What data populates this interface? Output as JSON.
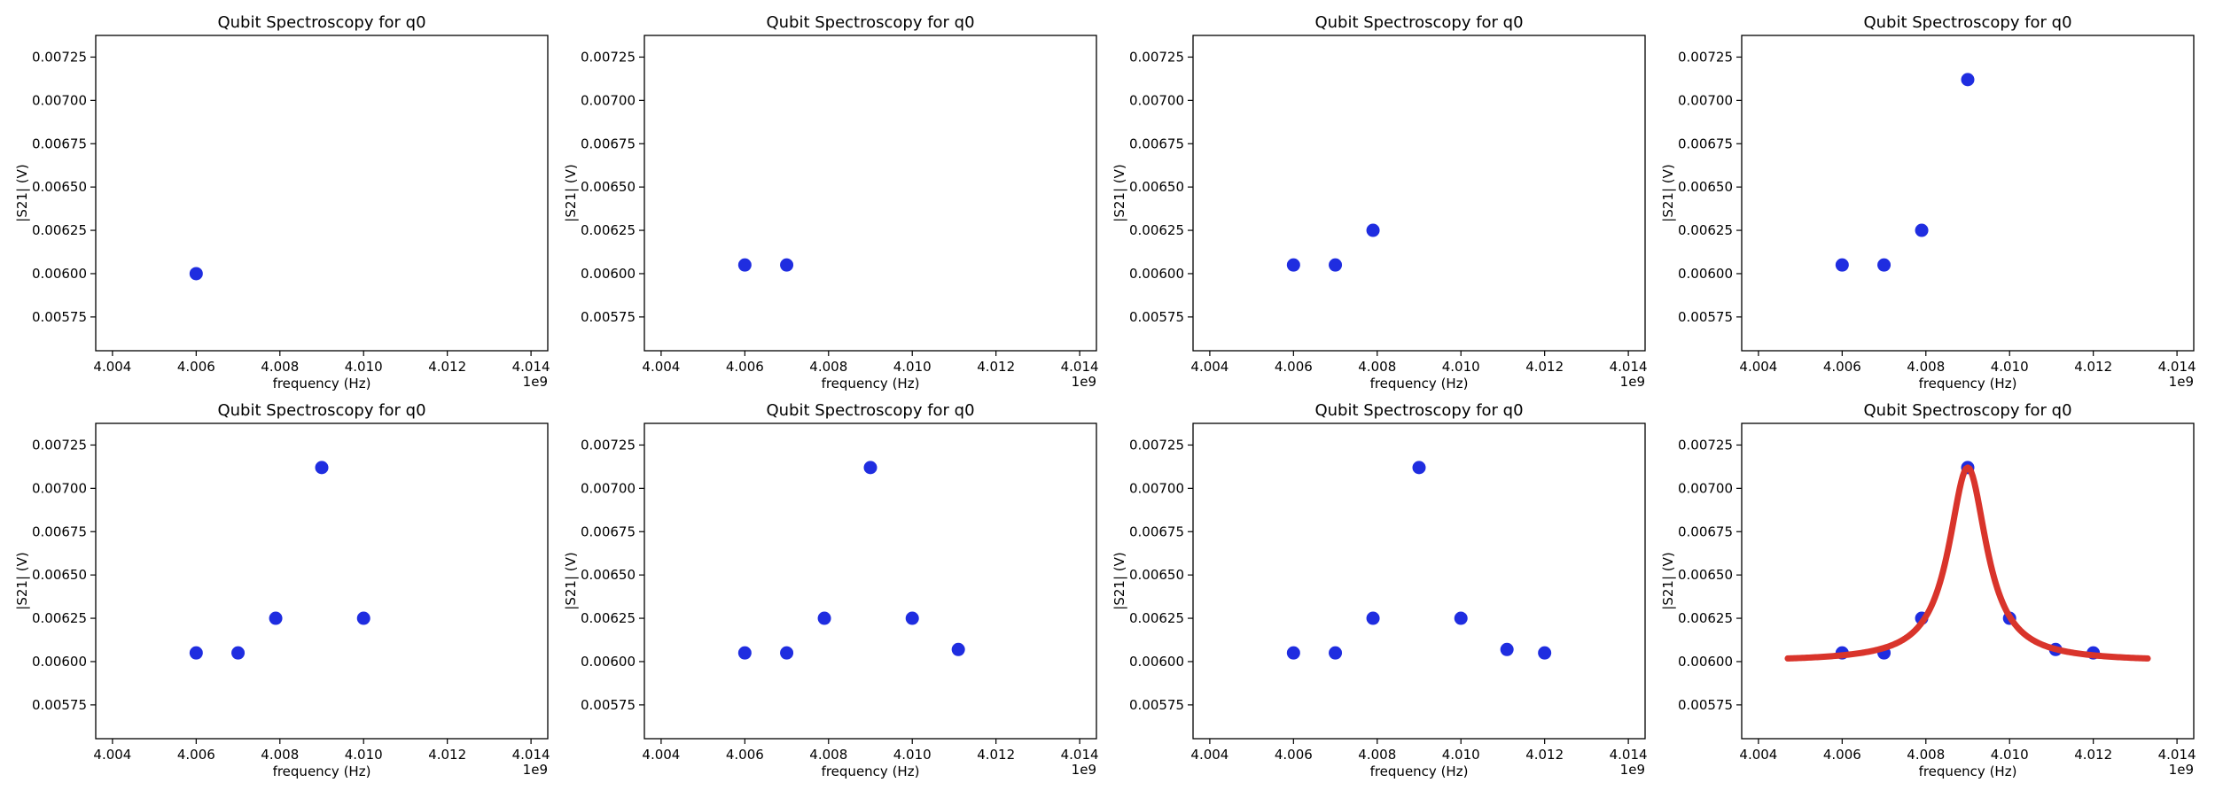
{
  "figure": {
    "background": "#ffffff",
    "marker_color": "#1f2de0",
    "fit_color": "#d9342b"
  },
  "chart_data": [
    {
      "type": "scatter",
      "title": "Qubit Spectroscopy for q0",
      "xlabel": "frequency (Hz)",
      "ylabel": "|S21| (V)",
      "x_offset_label": "1e9",
      "xlim": [
        4.0036,
        4.0144
      ],
      "ylim": [
        0.005555,
        0.007375
      ],
      "xticks": [
        "4.004",
        "4.006",
        "4.008",
        "4.010",
        "4.012",
        "4.014"
      ],
      "yticks": [
        "0.00575",
        "0.00600",
        "0.00625",
        "0.00650",
        "0.00675",
        "0.00700",
        "0.00725"
      ],
      "series": [
        {
          "x": [
            4.006
          ],
          "y": [
            0.006
          ]
        }
      ]
    },
    {
      "type": "scatter",
      "title": "Qubit Spectroscopy for q0",
      "xlabel": "frequency (Hz)",
      "ylabel": "|S21| (V)",
      "x_offset_label": "1e9",
      "xlim": [
        4.0036,
        4.0144
      ],
      "ylim": [
        0.005555,
        0.007375
      ],
      "xticks": [
        "4.004",
        "4.006",
        "4.008",
        "4.010",
        "4.012",
        "4.014"
      ],
      "yticks": [
        "0.00575",
        "0.00600",
        "0.00625",
        "0.00650",
        "0.00675",
        "0.00700",
        "0.00725"
      ],
      "series": [
        {
          "x": [
            4.006,
            4.007
          ],
          "y": [
            0.00605,
            0.00605
          ]
        }
      ]
    },
    {
      "type": "scatter",
      "title": "Qubit Spectroscopy for q0",
      "xlabel": "frequency (Hz)",
      "ylabel": "|S21| (V)",
      "x_offset_label": "1e9",
      "xlim": [
        4.0036,
        4.0144
      ],
      "ylim": [
        0.005555,
        0.007375
      ],
      "xticks": [
        "4.004",
        "4.006",
        "4.008",
        "4.010",
        "4.012",
        "4.014"
      ],
      "yticks": [
        "0.00575",
        "0.00600",
        "0.00625",
        "0.00650",
        "0.00675",
        "0.00700",
        "0.00725"
      ],
      "series": [
        {
          "x": [
            4.006,
            4.007,
            4.0079
          ],
          "y": [
            0.00605,
            0.00605,
            0.00625
          ]
        }
      ]
    },
    {
      "type": "scatter",
      "title": "Qubit Spectroscopy for q0",
      "xlabel": "frequency (Hz)",
      "ylabel": "|S21| (V)",
      "x_offset_label": "1e9",
      "xlim": [
        4.0036,
        4.0144
      ],
      "ylim": [
        0.005555,
        0.007375
      ],
      "xticks": [
        "4.004",
        "4.006",
        "4.008",
        "4.010",
        "4.012",
        "4.014"
      ],
      "yticks": [
        "0.00575",
        "0.00600",
        "0.00625",
        "0.00650",
        "0.00675",
        "0.00700",
        "0.00725"
      ],
      "series": [
        {
          "x": [
            4.006,
            4.007,
            4.0079,
            4.009
          ],
          "y": [
            0.00605,
            0.00605,
            0.00625,
            0.00712
          ]
        }
      ]
    },
    {
      "type": "scatter",
      "title": "Qubit Spectroscopy for q0",
      "xlabel": "frequency (Hz)",
      "ylabel": "|S21| (V)",
      "x_offset_label": "1e9",
      "xlim": [
        4.0036,
        4.0144
      ],
      "ylim": [
        0.005555,
        0.007375
      ],
      "xticks": [
        "4.004",
        "4.006",
        "4.008",
        "4.010",
        "4.012",
        "4.014"
      ],
      "yticks": [
        "0.00575",
        "0.00600",
        "0.00625",
        "0.00650",
        "0.00675",
        "0.00700",
        "0.00725"
      ],
      "series": [
        {
          "x": [
            4.006,
            4.007,
            4.0079,
            4.009,
            4.01
          ],
          "y": [
            0.00605,
            0.00605,
            0.00625,
            0.00712,
            0.00625
          ]
        }
      ]
    },
    {
      "type": "scatter",
      "title": "Qubit Spectroscopy for q0",
      "xlabel": "frequency (Hz)",
      "ylabel": "|S21| (V)",
      "x_offset_label": "1e9",
      "xlim": [
        4.0036,
        4.0144
      ],
      "ylim": [
        0.005555,
        0.007375
      ],
      "xticks": [
        "4.004",
        "4.006",
        "4.008",
        "4.010",
        "4.012",
        "4.014"
      ],
      "yticks": [
        "0.00575",
        "0.00600",
        "0.00625",
        "0.00650",
        "0.00675",
        "0.00700",
        "0.00725"
      ],
      "series": [
        {
          "x": [
            4.006,
            4.007,
            4.0079,
            4.009,
            4.01,
            4.0111
          ],
          "y": [
            0.00605,
            0.00605,
            0.00625,
            0.00712,
            0.00625,
            0.00607
          ]
        }
      ]
    },
    {
      "type": "scatter",
      "title": "Qubit Spectroscopy for q0",
      "xlabel": "frequency (Hz)",
      "ylabel": "|S21| (V)",
      "x_offset_label": "1e9",
      "xlim": [
        4.0036,
        4.0144
      ],
      "ylim": [
        0.005555,
        0.007375
      ],
      "xticks": [
        "4.004",
        "4.006",
        "4.008",
        "4.010",
        "4.012",
        "4.014"
      ],
      "yticks": [
        "0.00575",
        "0.00600",
        "0.00625",
        "0.00650",
        "0.00675",
        "0.00700",
        "0.00725"
      ],
      "series": [
        {
          "x": [
            4.006,
            4.007,
            4.0079,
            4.009,
            4.01,
            4.0111,
            4.012
          ],
          "y": [
            0.00605,
            0.00605,
            0.00625,
            0.00712,
            0.00625,
            0.00607,
            0.00605
          ]
        }
      ]
    },
    {
      "type": "scatter",
      "title": "Qubit Spectroscopy for q0",
      "xlabel": "frequency (Hz)",
      "ylabel": "|S21| (V)",
      "x_offset_label": "1e9",
      "xlim": [
        4.0036,
        4.0144
      ],
      "ylim": [
        0.005555,
        0.007375
      ],
      "xticks": [
        "4.004",
        "4.006",
        "4.008",
        "4.010",
        "4.012",
        "4.014"
      ],
      "yticks": [
        "0.00575",
        "0.00600",
        "0.00625",
        "0.00650",
        "0.00675",
        "0.00700",
        "0.00725"
      ],
      "series": [
        {
          "x": [
            4.006,
            4.007,
            4.0079,
            4.009,
            4.01,
            4.0111,
            4.012
          ],
          "y": [
            0.00605,
            0.00605,
            0.00625,
            0.00712,
            0.00625,
            0.00607,
            0.00605
          ]
        }
      ],
      "fit": {
        "type": "lorentzian",
        "x_range": [
          4.0047,
          4.0133
        ],
        "center": 4.009,
        "fwhm": 0.0011,
        "baseline": 0.006,
        "amplitude": 0.00112
      }
    }
  ]
}
